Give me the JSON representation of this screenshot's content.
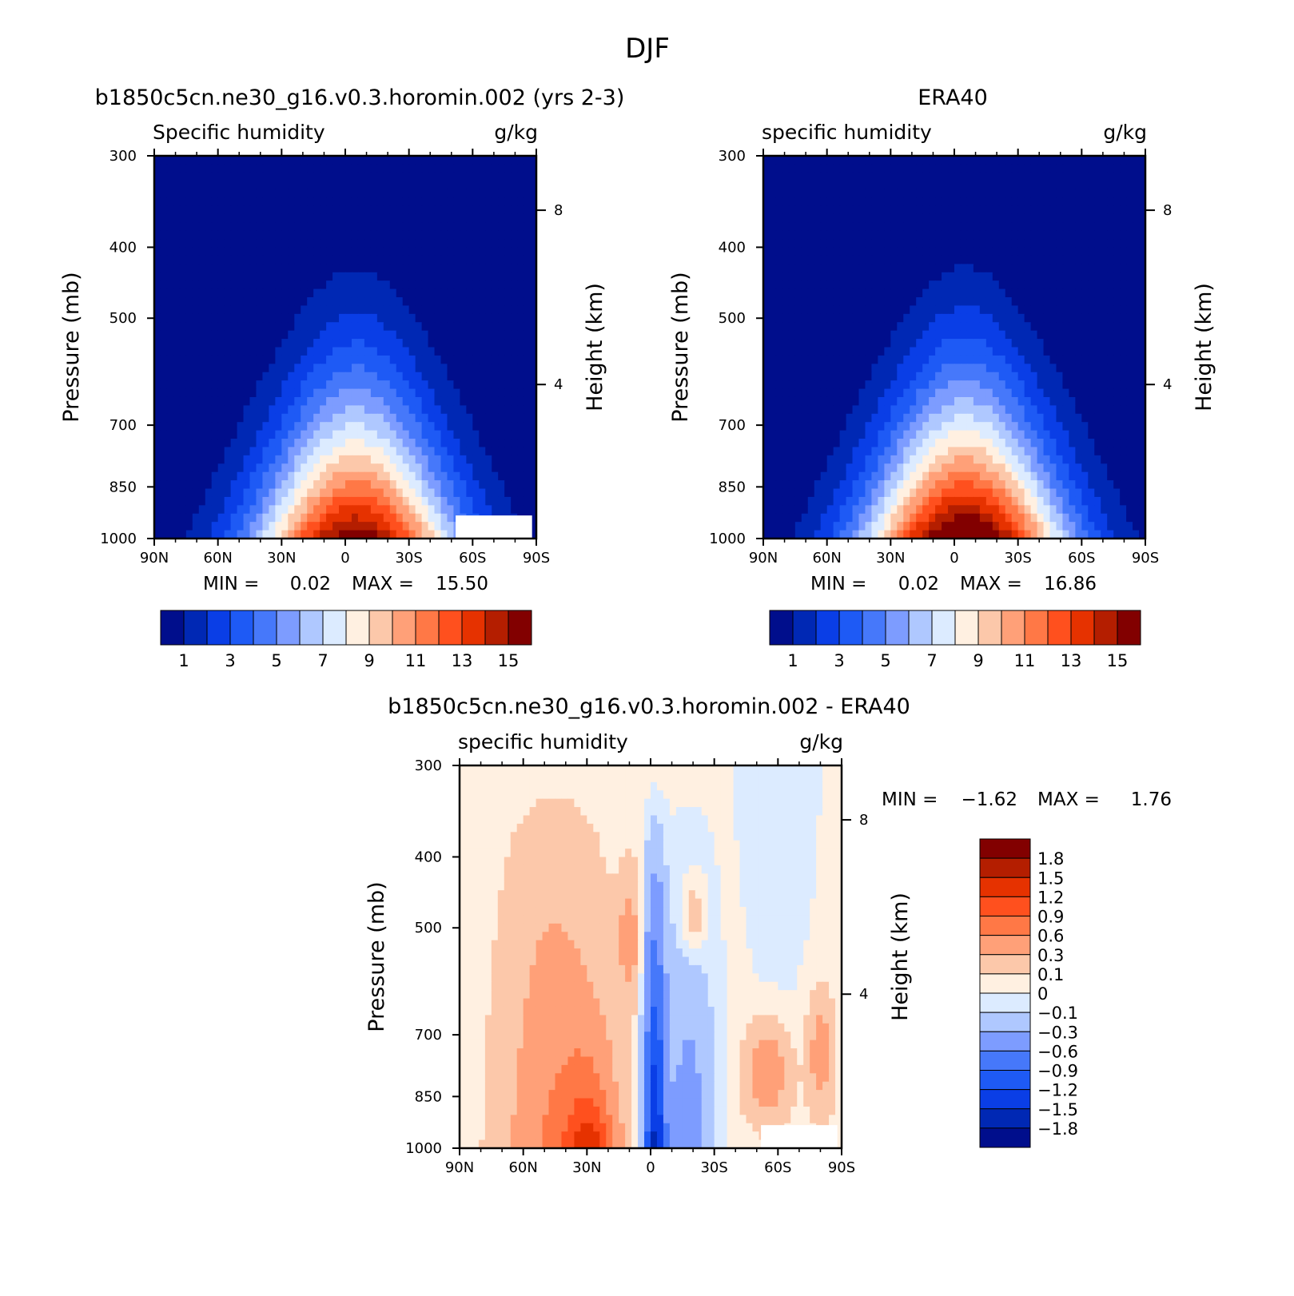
{
  "figure_title": "DJF",
  "colors": {
    "abs": [
      "#000e8c",
      "#0028b4",
      "#0a3ee6",
      "#1e5af5",
      "#4678fa",
      "#7d9cff",
      "#afc8ff",
      "#dcebff",
      "#fff0e1",
      "#fcc8aa",
      "#ffa078",
      "#ff7846",
      "#ff501e",
      "#e63200",
      "#b41e00",
      "#820000"
    ],
    "diff": [
      "#000e8c",
      "#0028b4",
      "#0a3ee6",
      "#1e5af5",
      "#4678fa",
      "#7d9cff",
      "#afc8ff",
      "#dcebff",
      "#fff0e1",
      "#fcc8aa",
      "#ffa078",
      "#ff7846",
      "#ff501e",
      "#e63200",
      "#b41e00",
      "#820000"
    ]
  },
  "chart_data": [
    {
      "type": "heatmap",
      "title": "b1850c5cn.ne30_g16.v0.3.horomin.002 (yrs 2-3)",
      "subtitle_left": "Specific humidity",
      "subtitle_right": "g/kg",
      "xlabel": "",
      "ylabel": "Pressure (mb)",
      "y2label": "Height (km)",
      "x_ticks": [
        "90N",
        "60N",
        "30N",
        "0",
        "30S",
        "60S",
        "90S"
      ],
      "y_ticks": [
        "300",
        "400",
        "500",
        "700",
        "850",
        "1000"
      ],
      "y2_ticks": [
        "8",
        "4"
      ],
      "xlim": [
        -90,
        90
      ],
      "ylim": [
        1000,
        300
      ],
      "log_y": true,
      "stats": {
        "min_label": "MIN =",
        "min": "0.02",
        "max_label": "MAX =",
        "max": "15.50"
      },
      "colorbar": {
        "orientation": "horizontal",
        "labels": [
          "1",
          "3",
          "5",
          "7",
          "9",
          "11",
          "13",
          "15"
        ]
      },
      "max_value": 15.5
    },
    {
      "type": "heatmap",
      "title": "ERA40",
      "subtitle_left": "specific humidity",
      "subtitle_right": "g/kg",
      "xlabel": "",
      "ylabel": "Pressure (mb)",
      "y2label": "Height (km)",
      "x_ticks": [
        "90N",
        "60N",
        "30N",
        "0",
        "30S",
        "60S",
        "90S"
      ],
      "y_ticks": [
        "300",
        "400",
        "500",
        "700",
        "850",
        "1000"
      ],
      "y2_ticks": [
        "8",
        "4"
      ],
      "xlim": [
        -90,
        90
      ],
      "ylim": [
        1000,
        300
      ],
      "log_y": true,
      "stats": {
        "min_label": "MIN =",
        "min": "0.02",
        "max_label": "MAX =",
        "max": "16.86"
      },
      "colorbar": {
        "orientation": "horizontal",
        "labels": [
          "1",
          "3",
          "5",
          "7",
          "9",
          "11",
          "13",
          "15"
        ]
      },
      "max_value": 16.86
    },
    {
      "type": "heatmap",
      "title": "b1850c5cn.ne30_g16.v0.3.horomin.002 - ERA40",
      "subtitle_left": "specific humidity",
      "subtitle_right": "g/kg",
      "xlabel": "",
      "ylabel": "Pressure (mb)",
      "y2label": "Height (km)",
      "x_ticks": [
        "90N",
        "60N",
        "30N",
        "0",
        "30S",
        "60S",
        "90S"
      ],
      "y_ticks": [
        "300",
        "400",
        "500",
        "700",
        "850",
        "1000"
      ],
      "y2_ticks": [
        "8",
        "4"
      ],
      "xlim": [
        -90,
        90
      ],
      "ylim": [
        1000,
        300
      ],
      "log_y": true,
      "stats": {
        "min_label": "MIN =",
        "min": "-1.62",
        "max_label": "MAX =",
        "max": "1.76"
      },
      "colorbar": {
        "orientation": "vertical",
        "labels": [
          "1.8",
          "1.5",
          "1.2",
          "0.9",
          "0.6",
          "0.3",
          "0.1",
          "0",
          "-0.1",
          "-0.3",
          "-0.6",
          "-0.9",
          "-1.2",
          "-1.5",
          "-1.8"
        ]
      }
    }
  ]
}
